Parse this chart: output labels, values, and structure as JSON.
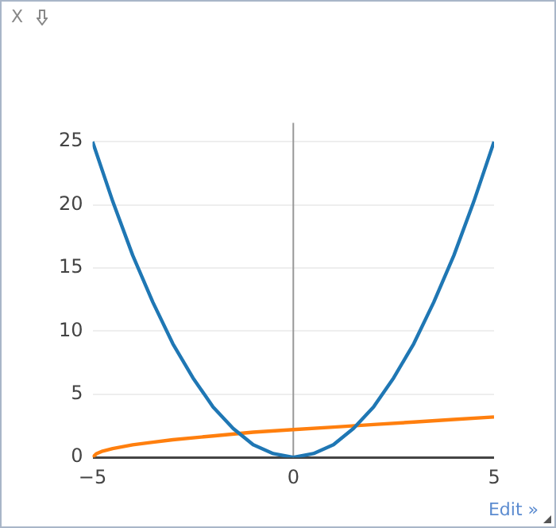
{
  "chart_data": {
    "type": "line",
    "x": [
      -5,
      -4.5,
      -4,
      -3.5,
      -3,
      -2.5,
      -2,
      -1.5,
      -1,
      -0.5,
      0,
      0.5,
      1,
      1.5,
      2,
      2.5,
      3,
      3.5,
      4,
      4.5,
      5
    ],
    "series": [
      {
        "color": "#1f77b4",
        "values": [
          25,
          20.3,
          16,
          12.3,
          9,
          6.3,
          4,
          2.3,
          1,
          0.3,
          0,
          0.3,
          1,
          2.3,
          4,
          6.3,
          9,
          12.3,
          16,
          20.3,
          25
        ]
      },
      {
        "color": "#ff7f0e",
        "x": [
          -5,
          -4.9,
          -4.75,
          -4.5,
          -4,
          -3.5,
          -3,
          -2,
          -1,
          0,
          1,
          2,
          3,
          4,
          5
        ],
        "values": [
          0,
          0.3,
          0.5,
          0.7,
          1,
          1.2,
          1.4,
          1.7,
          2,
          2.2,
          2.4,
          2.6,
          2.8,
          3,
          3.2
        ]
      }
    ],
    "xlim": [
      -5,
      5
    ],
    "xticks": [
      -5,
      0,
      5
    ],
    "ylim": [
      0,
      26.5
    ],
    "yticks": [
      0,
      5,
      10,
      15,
      20,
      25
    ],
    "grid": "y",
    "legend": false,
    "marker": "none",
    "line_style": "solid",
    "ref_lines": [
      {
        "axis": "x",
        "value": 0,
        "color": "#999999"
      }
    ],
    "annotations": [
      "X",
      "Edit »"
    ]
  }
}
